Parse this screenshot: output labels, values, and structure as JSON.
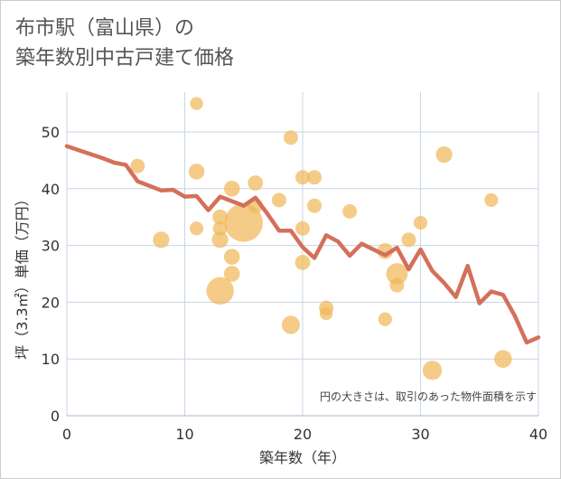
{
  "chart_data": {
    "type": "scatter",
    "title_line1": "布市駅（富山県）の",
    "title_line2": "築年数別中古戸建て価格",
    "xlabel": "築年数（年）",
    "ylabel": "坪（3.3㎡）単価（万円）",
    "xlim": [
      0,
      40
    ],
    "ylim": [
      0,
      57
    ],
    "xticks": [
      0,
      10,
      20,
      30,
      40
    ],
    "yticks": [
      0,
      10,
      20,
      30,
      40,
      50
    ],
    "note": "円の大きさは、取引のあった物件面積を示す",
    "colors": {
      "bubble": "#f0b95a",
      "line": "#d4705a",
      "grid": "#c8d6e6",
      "text": "#333333"
    },
    "bubbles": [
      {
        "x": 6,
        "y": 44,
        "size": 1
      },
      {
        "x": 8,
        "y": 31,
        "size": 1.3
      },
      {
        "x": 11,
        "y": 55,
        "size": 0.8
      },
      {
        "x": 11,
        "y": 43,
        "size": 1.2
      },
      {
        "x": 11,
        "y": 33,
        "size": 0.9
      },
      {
        "x": 13,
        "y": 35,
        "size": 1.1
      },
      {
        "x": 13,
        "y": 33,
        "size": 1
      },
      {
        "x": 13,
        "y": 31,
        "size": 1.3
      },
      {
        "x": 13,
        "y": 22,
        "size": 3.6
      },
      {
        "x": 14,
        "y": 40,
        "size": 1.2
      },
      {
        "x": 14,
        "y": 28,
        "size": 1.2
      },
      {
        "x": 14,
        "y": 25,
        "size": 1.2
      },
      {
        "x": 15,
        "y": 34,
        "size": 7
      },
      {
        "x": 16,
        "y": 41,
        "size": 1.1
      },
      {
        "x": 16,
        "y": 37,
        "size": 1.1
      },
      {
        "x": 18,
        "y": 38,
        "size": 1
      },
      {
        "x": 19,
        "y": 49,
        "size": 1
      },
      {
        "x": 19,
        "y": 16,
        "size": 1.6
      },
      {
        "x": 20,
        "y": 42,
        "size": 1
      },
      {
        "x": 20,
        "y": 33,
        "size": 1
      },
      {
        "x": 20,
        "y": 27,
        "size": 1.1
      },
      {
        "x": 21,
        "y": 42,
        "size": 1
      },
      {
        "x": 21,
        "y": 37,
        "size": 1
      },
      {
        "x": 22,
        "y": 19,
        "size": 1
      },
      {
        "x": 22,
        "y": 18,
        "size": 0.8
      },
      {
        "x": 24,
        "y": 36,
        "size": 1
      },
      {
        "x": 27,
        "y": 29,
        "size": 1.2
      },
      {
        "x": 27,
        "y": 17,
        "size": 0.9
      },
      {
        "x": 28,
        "y": 25,
        "size": 2.2
      },
      {
        "x": 28,
        "y": 23,
        "size": 1
      },
      {
        "x": 29,
        "y": 31,
        "size": 1
      },
      {
        "x": 30,
        "y": 34,
        "size": 0.9
      },
      {
        "x": 31,
        "y": 8,
        "size": 1.8
      },
      {
        "x": 32,
        "y": 46,
        "size": 1.3
      },
      {
        "x": 36,
        "y": 38,
        "size": 0.9
      },
      {
        "x": 37,
        "y": 10,
        "size": 1.5
      }
    ],
    "trend": {
      "x": [
        0,
        1,
        2,
        3,
        4,
        5,
        6,
        7,
        8,
        9,
        10,
        11,
        12,
        13,
        14,
        15,
        16,
        17,
        18,
        19,
        20,
        21,
        22,
        23,
        24,
        25,
        26,
        27,
        28,
        29,
        30,
        31,
        32,
        33,
        34,
        35,
        36,
        37,
        38,
        39,
        40
      ],
      "y": [
        47.5,
        46.8,
        46.1,
        45.4,
        44.6,
        44.2,
        41.3,
        40.5,
        39.7,
        39.8,
        38.6,
        38.7,
        36.2,
        38.6,
        37.8,
        37.0,
        38.4,
        35.6,
        32.6,
        32.6,
        29.7,
        27.8,
        31.8,
        30.7,
        28.2,
        30.3,
        29.3,
        28.3,
        29.6,
        25.8,
        29.3,
        25.5,
        23.4,
        20.9,
        26.4,
        19.8,
        21.9,
        21.3,
        17.6,
        12.9,
        13.8
      ]
    }
  }
}
